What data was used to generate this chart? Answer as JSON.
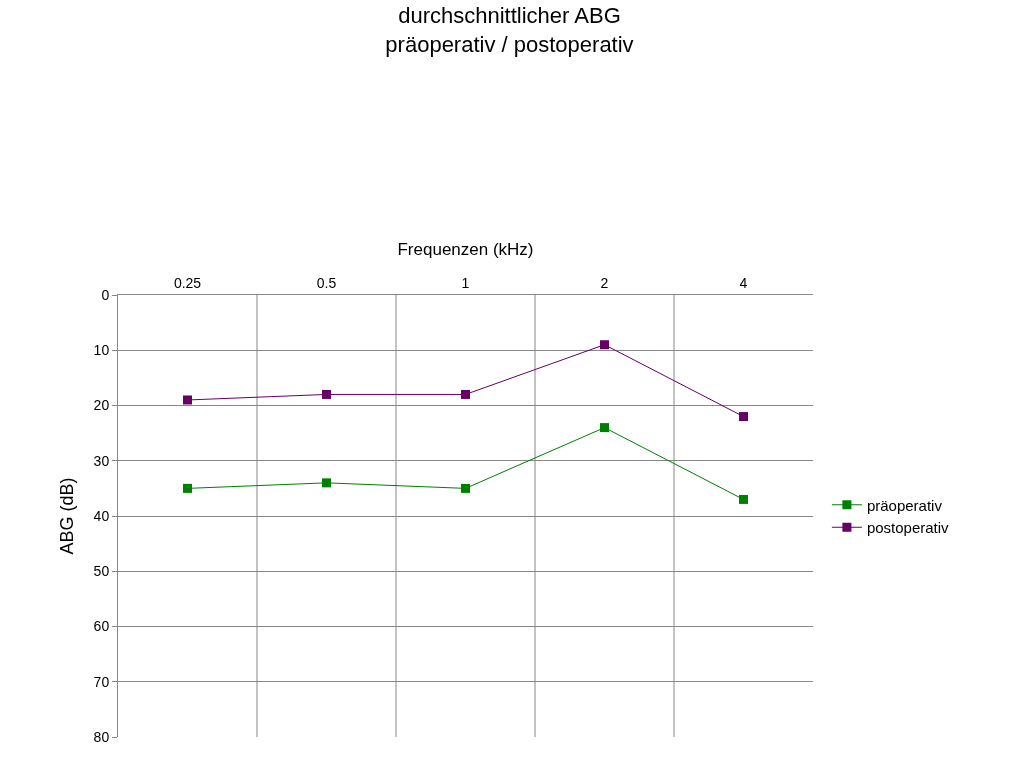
{
  "chart_data": {
    "type": "line",
    "title": "durchschnittlicher ABG\npräoperativ / postoperativ",
    "xlabel": "Frequenzen (kHz)",
    "ylabel": "ABG (dB)",
    "categories": [
      "0.25",
      "0.5",
      "1",
      "2",
      "4"
    ],
    "series": [
      {
        "name": "präoperativ",
        "color": "#008000",
        "values": [
          35,
          34,
          35,
          24,
          37
        ]
      },
      {
        "name": "postoperativ",
        "color": "#660066",
        "values": [
          19,
          18,
          18,
          9,
          22
        ]
      }
    ],
    "ylim": [
      80,
      0
    ],
    "yticks": [
      0,
      10,
      20,
      30,
      40,
      50,
      60,
      70,
      80
    ],
    "grid": true,
    "legend": "right",
    "marker": "square",
    "line_style": "solid"
  }
}
